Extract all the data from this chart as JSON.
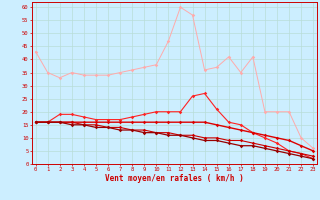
{
  "title": "",
  "xlabel": "Vent moyen/en rafales ( km/h )",
  "ylabel": "",
  "bg_color": "#cceeff",
  "grid_color": "#b8ddd8",
  "x": [
    0,
    1,
    2,
    3,
    4,
    5,
    6,
    7,
    8,
    9,
    10,
    11,
    12,
    13,
    14,
    15,
    16,
    17,
    18,
    19,
    20,
    21,
    22,
    23
  ],
  "line1": [
    43,
    35,
    33,
    35,
    34,
    34,
    34,
    35,
    36,
    37,
    38,
    47,
    60,
    57,
    36,
    37,
    41,
    35,
    41,
    20,
    20,
    20,
    10,
    6
  ],
  "line2": [
    16,
    16,
    19,
    19,
    18,
    17,
    17,
    17,
    18,
    19,
    20,
    20,
    20,
    26,
    27,
    21,
    16,
    15,
    12,
    10,
    8,
    5,
    4,
    2
  ],
  "line3": [
    16,
    16,
    16,
    16,
    16,
    16,
    16,
    16,
    16,
    16,
    16,
    16,
    16,
    16,
    16,
    15,
    14,
    13,
    12,
    11,
    10,
    9,
    7,
    5
  ],
  "line4": [
    16,
    16,
    16,
    16,
    15,
    15,
    14,
    14,
    13,
    13,
    12,
    12,
    11,
    11,
    10,
    10,
    9,
    9,
    8,
    7,
    6,
    5,
    4,
    3
  ],
  "line5": [
    16,
    16,
    16,
    15,
    15,
    14,
    14,
    13,
    13,
    12,
    12,
    11,
    11,
    10,
    9,
    9,
    8,
    7,
    7,
    6,
    5,
    4,
    3,
    2
  ],
  "ylim": [
    0,
    62
  ],
  "yticks": [
    0,
    5,
    10,
    15,
    20,
    25,
    30,
    35,
    40,
    45,
    50,
    55,
    60
  ],
  "line1_color": "#ffaaaa",
  "line2_color": "#ff2222",
  "line3_color": "#dd0000",
  "line4_color": "#cc0000",
  "line5_color": "#990000",
  "marker": "D",
  "markersize": 1.8,
  "axis_color": "#cc0000",
  "tick_color": "#cc0000",
  "label_color": "#cc0000",
  "tick_fontsize": 4.0,
  "xlabel_fontsize": 5.5
}
